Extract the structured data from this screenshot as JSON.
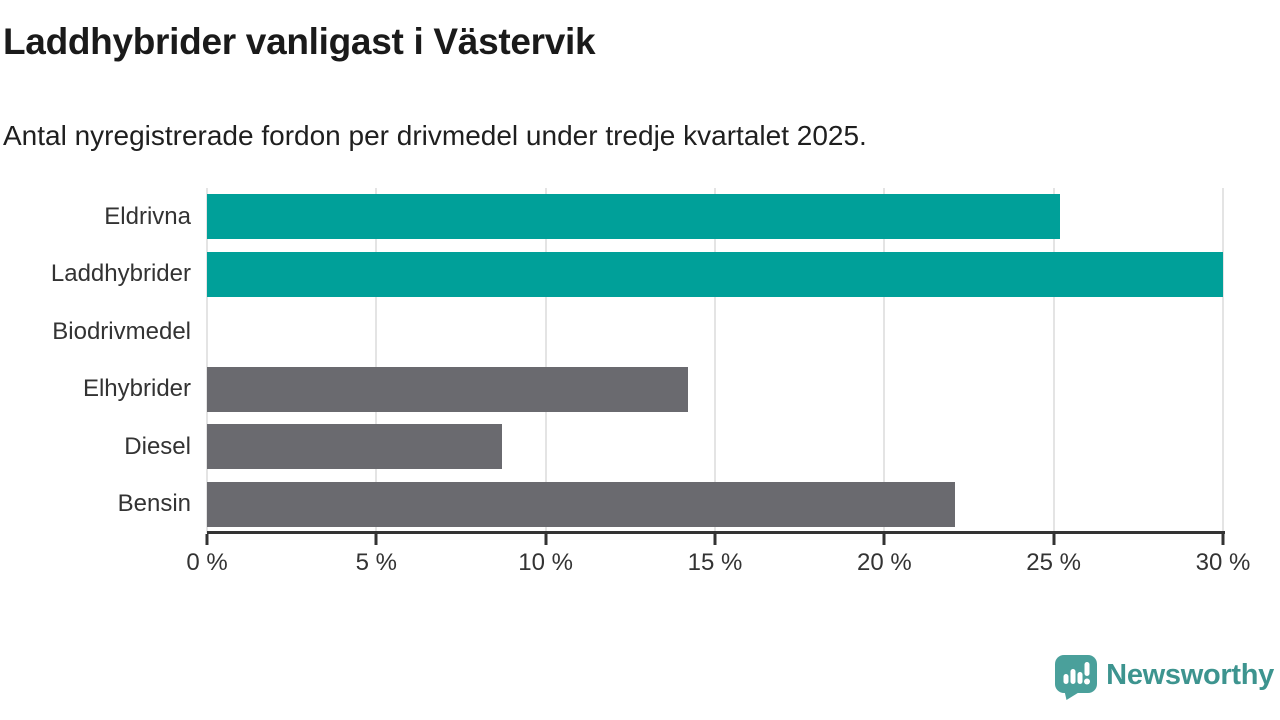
{
  "chart_data": {
    "type": "bar",
    "orientation": "horizontal",
    "title": "Laddhybrider vanligast i Västervik",
    "subtitle": "Antal nyregistrerade fordon per drivmedel under tredje kvartalet 2025.",
    "categories": [
      "Eldrivna",
      "Laddhybrider",
      "Biodrivmedel",
      "Elhybrider",
      "Diesel",
      "Bensin"
    ],
    "values": [
      25.2,
      30.0,
      0,
      14.2,
      8.7,
      22.1
    ],
    "unit": "%",
    "bar_colors": [
      "#00a099",
      "#00a099",
      "#6a6a6f",
      "#6a6a6f",
      "#6a6a6f",
      "#6a6a6f"
    ],
    "xlim": [
      0,
      30
    ],
    "x_tick_values": [
      0,
      5,
      10,
      15,
      20,
      25,
      30
    ],
    "x_tick_labels": [
      "0 %",
      "5 %",
      "10 %",
      "15 %",
      "20 %",
      "25 %",
      "30 %"
    ],
    "grid": true,
    "legend": "none"
  },
  "colors": {
    "highlight_teal": "#00a099",
    "neutral_gray": "#6a6a6f",
    "gridline": "#e4e4e4",
    "axis": "#333333",
    "text": "#333333",
    "logo_icon": "#4aa09b",
    "logo_text": "#3d948f"
  },
  "branding": {
    "logo_text": "Newsworthy",
    "logo_icon": "newsworthy-speech-bubble-bar-chart-icon"
  }
}
